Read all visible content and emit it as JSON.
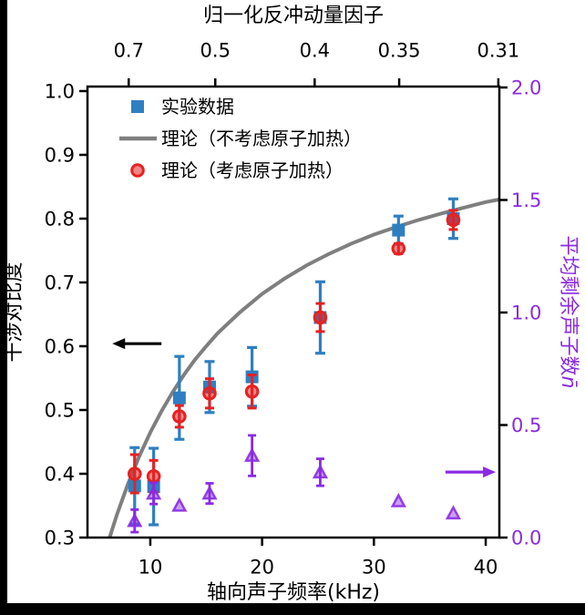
{
  "figure": {
    "background": "#ffffff",
    "frame_color": "#000000"
  },
  "chart_data": {
    "type": "scatter",
    "top_axis_label": "归一化反冲动量因子",
    "xlabel": "轴向声子频率(kHz)",
    "ylabel_left": "干涉对比度",
    "ylabel_right": {
      "text": "平均剩余声子数",
      "math": "n̄"
    },
    "xlim": [
      4.38,
      41.22
    ],
    "ylim_left": [
      0.3,
      1.0071
    ],
    "ylim_right": [
      0,
      2.004
    ],
    "x_ticks": [
      {
        "f": 10,
        "label": "10"
      },
      {
        "f": 20,
        "label": "20"
      },
      {
        "f": 30,
        "label": "30"
      },
      {
        "f": 40,
        "label": "40"
      }
    ],
    "y_ticks_left": [
      {
        "v": 0.3,
        "label": "0.3"
      },
      {
        "v": 0.4,
        "label": "0.4"
      },
      {
        "v": 0.5,
        "label": "0.5"
      },
      {
        "v": 0.6,
        "label": "0.6"
      },
      {
        "v": 0.7,
        "label": "0.7"
      },
      {
        "v": 0.8,
        "label": "0.8"
      },
      {
        "v": 0.9,
        "label": "0.9"
      },
      {
        "v": 1.0,
        "label": "1.0"
      }
    ],
    "y_ticks_right": [
      {
        "v": 0.0,
        "label": "0.0"
      },
      {
        "v": 0.5,
        "label": "0.5"
      },
      {
        "v": 1.0,
        "label": "1.0"
      },
      {
        "v": 1.5,
        "label": "1.5"
      },
      {
        "v": 2.0,
        "label": "2.0"
      }
    ],
    "top_ticks": [
      {
        "f": 8.07,
        "label": "0.7"
      },
      {
        "f": 15.81,
        "label": "0.5"
      },
      {
        "f": 24.7,
        "label": "0.4"
      },
      {
        "f": 32.26,
        "label": "0.35"
      },
      {
        "f": 41.13,
        "label": "0.31"
      }
    ],
    "legend": [
      {
        "key": "experimental",
        "marker": "square",
        "label": "实验数据"
      },
      {
        "key": "theory-no-heating",
        "marker": "line",
        "label": "理论（不考虑原子加热）"
      },
      {
        "key": "theory-heating",
        "marker": "circle",
        "label": "理论（考虑原子加热）"
      }
    ],
    "series": {
      "experimental": {
        "name": "实验数据",
        "axis": "left",
        "points": [
          {
            "f": 8.6,
            "c": 0.381,
            "err": 0.06
          },
          {
            "f": 10.3,
            "c": 0.38,
            "err": 0.06
          },
          {
            "f": 12.6,
            "c": 0.519,
            "err": 0.065
          },
          {
            "f": 15.3,
            "c": 0.536,
            "err": 0.04
          },
          {
            "f": 19.1,
            "c": 0.552,
            "err": 0.046
          },
          {
            "f": 25.2,
            "c": 0.645,
            "err": 0.056
          },
          {
            "f": 32.2,
            "c": 0.782,
            "err": 0.022
          },
          {
            "f": 37.1,
            "c": 0.8,
            "err": 0.031
          }
        ]
      },
      "theory_heating": {
        "name": "理论（考虑原子加热）",
        "axis": "left",
        "points": [
          {
            "f": 8.6,
            "c": 0.4,
            "err": 0.03
          },
          {
            "f": 10.3,
            "c": 0.396,
            "err": 0.025
          },
          {
            "f": 12.6,
            "c": 0.49,
            "err": 0.017
          },
          {
            "f": 15.3,
            "c": 0.526,
            "err": 0.023
          },
          {
            "f": 19.1,
            "c": 0.529,
            "err": 0.026
          },
          {
            "f": 25.2,
            "c": 0.645,
            "err": 0.022
          },
          {
            "f": 32.2,
            "c": 0.753,
            "err": 0.008
          },
          {
            "f": 37.1,
            "c": 0.798,
            "err": 0.015
          }
        ]
      },
      "theory_no_heating": {
        "name": "理论（不考虑原子加热）",
        "axis": "left",
        "curve": [
          {
            "f": 6.36,
            "c": 0.3
          },
          {
            "f": 7,
            "c": 0.335
          },
          {
            "f": 8,
            "c": 0.384
          },
          {
            "f": 9,
            "c": 0.427
          },
          {
            "f": 10,
            "c": 0.465
          },
          {
            "f": 11,
            "c": 0.498
          },
          {
            "f": 12,
            "c": 0.528
          },
          {
            "f": 13,
            "c": 0.555
          },
          {
            "f": 14,
            "c": 0.579
          },
          {
            "f": 15,
            "c": 0.6
          },
          {
            "f": 16,
            "c": 0.62
          },
          {
            "f": 18,
            "c": 0.653
          },
          {
            "f": 20,
            "c": 0.682
          },
          {
            "f": 22,
            "c": 0.706
          },
          {
            "f": 24,
            "c": 0.727
          },
          {
            "f": 26,
            "c": 0.745
          },
          {
            "f": 28,
            "c": 0.761
          },
          {
            "f": 30,
            "c": 0.775
          },
          {
            "f": 32,
            "c": 0.787
          },
          {
            "f": 34,
            "c": 0.798
          },
          {
            "f": 36,
            "c": 0.808
          },
          {
            "f": 38,
            "c": 0.817
          },
          {
            "f": 40,
            "c": 0.826
          },
          {
            "f": 41.2,
            "c": 0.83
          }
        ]
      },
      "residual_phonon": {
        "name": "平均剩余声子数",
        "axis": "right",
        "points": [
          {
            "f": 8.6,
            "n": 0.074,
            "err": 0.05
          },
          {
            "f": 10.3,
            "n": 0.196,
            "err": 0.047
          },
          {
            "f": 12.6,
            "n": 0.142,
            "err": 0
          },
          {
            "f": 15.3,
            "n": 0.196,
            "err": 0.045
          },
          {
            "f": 19.1,
            "n": 0.364,
            "err": 0.09
          },
          {
            "f": 25.2,
            "n": 0.29,
            "err": 0.06
          },
          {
            "f": 32.2,
            "n": 0.162,
            "err": 0
          },
          {
            "f": 37.1,
            "n": 0.108,
            "err": 0
          }
        ]
      }
    },
    "annotations": {
      "left_arrow": {
        "axis": "left",
        "c": 0.604,
        "f_from": 11.0,
        "f_to": 6.6
      },
      "right_arrow": {
        "axis": "right",
        "n": 0.291,
        "f_from": 36.4,
        "f_to": 40.9
      }
    },
    "colors": {
      "blue": "#2e7fc2",
      "red": "#e62222",
      "gray": "#7f7f7f",
      "purple": "#8a2be2",
      "black": "#000000"
    }
  }
}
